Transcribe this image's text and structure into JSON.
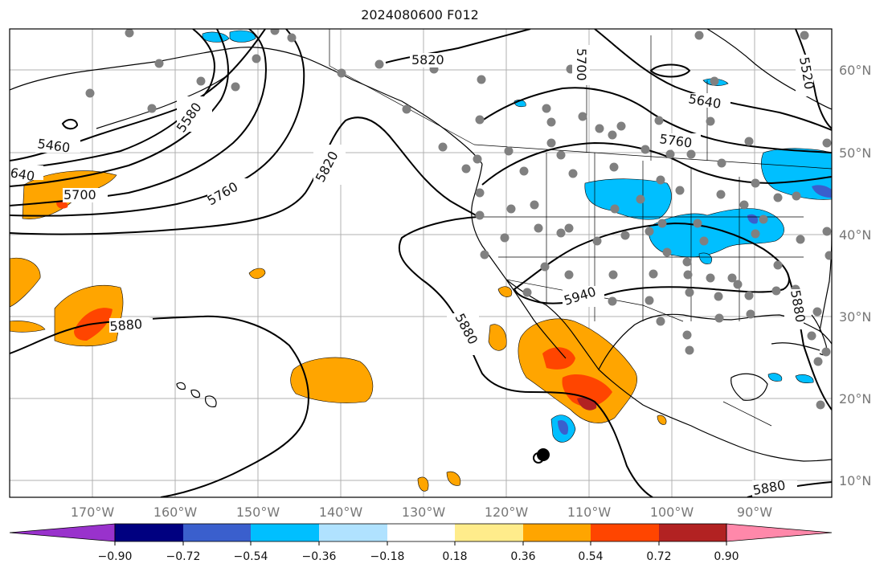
{
  "title": "2024080600 F012",
  "map": {
    "lon_labels": [
      "170°W",
      "160°W",
      "150°W",
      "140°W",
      "130°W",
      "120°W",
      "110°W",
      "100°W",
      "90°W"
    ],
    "lat_labels": [
      "60°N",
      "50°N",
      "40°N",
      "30°N",
      "20°N",
      "10°N"
    ],
    "contour_labels": [
      "5820",
      "5700",
      "5640",
      "5520",
      "5460",
      "5580",
      "640",
      "5700",
      "5760",
      "5820",
      "5760",
      "5940",
      "5880",
      "5880",
      "5880",
      "5880"
    ],
    "grid": true,
    "colors": {
      "contour": "#000000",
      "coast": "#000000",
      "grid": "#b0b0b0",
      "station_dot": "#808080"
    }
  },
  "colorbar": {
    "ticks": [
      "−0.90",
      "−0.72",
      "−0.54",
      "−0.36",
      "−0.18",
      "0.18",
      "0.36",
      "0.54",
      "0.72",
      "0.90"
    ],
    "colors": [
      "#9932cc",
      "#000080",
      "#3a5fcd",
      "#00bfff",
      "#b0e2ff",
      "#ffffff",
      "#ffec8b",
      "#ffa500",
      "#ff4500",
      "#b22222",
      "#ff88aa"
    ]
  }
}
